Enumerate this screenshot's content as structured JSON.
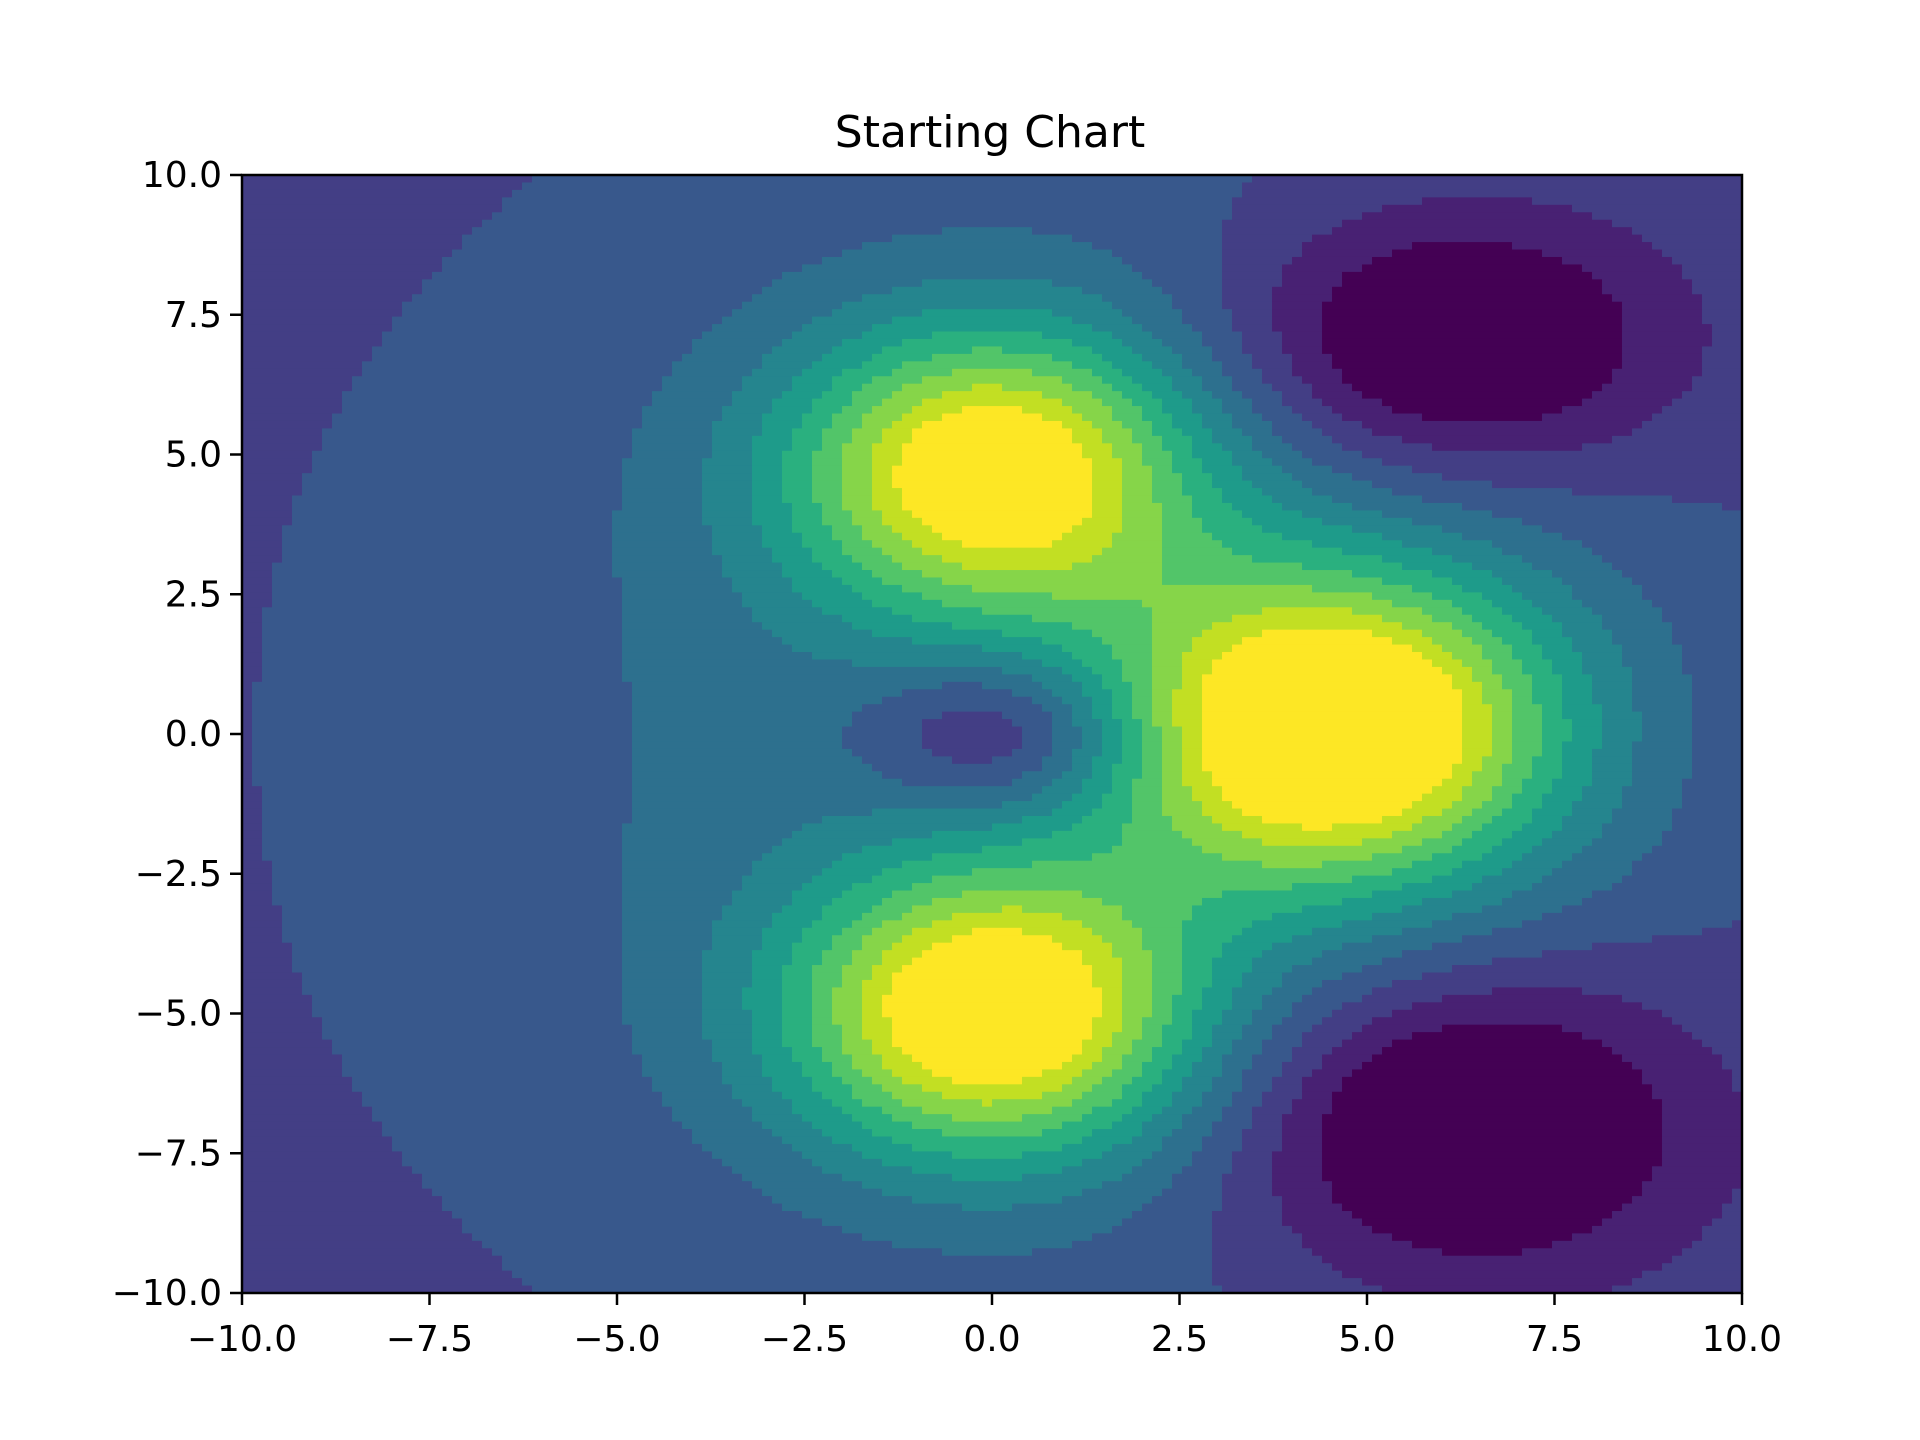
{
  "chart_data": {
    "type": "contour",
    "title": "Starting Chart",
    "xlabel": "",
    "ylabel": "",
    "xlim": [
      -10.0,
      10.0
    ],
    "ylim": [
      -10.0,
      10.0
    ],
    "x_ticks": [
      "−10.0",
      "−7.5",
      "−5.0",
      "−2.5",
      "0.0",
      "2.5",
      "5.0",
      "7.5",
      "10.0"
    ],
    "x_tick_values": [
      -10.0,
      -7.5,
      -5.0,
      -2.5,
      0.0,
      2.5,
      5.0,
      7.5,
      10.0
    ],
    "y_ticks": [
      "10.0",
      "7.5",
      "5.0",
      "2.5",
      "0.0",
      "−2.5",
      "−5.0",
      "−7.5",
      "−10.0"
    ],
    "y_tick_values": [
      10.0,
      7.5,
      5.0,
      2.5,
      0.0,
      -2.5,
      -5.0,
      -7.5,
      -10.0
    ],
    "colormap": "viridis",
    "grid": false,
    "legend": "none",
    "levels": [
      -0.3,
      -0.2,
      -0.1,
      0.0,
      0.1,
      0.2,
      0.3,
      0.4,
      0.5,
      0.6,
      0.7,
      0.8,
      0.9,
      1.0
    ],
    "level_colors": [
      "#440154",
      "#482173",
      "#433e85",
      "#38588c",
      "#2d708e",
      "#25858e",
      "#1e9b8a",
      "#2ab07f",
      "#52c569",
      "#86d549",
      "#c2df23",
      "#fde725"
    ],
    "features": [
      {
        "kind": "peak",
        "x": 4.6,
        "y": 0.1,
        "value": 1.0
      },
      {
        "kind": "peak",
        "x": 0.0,
        "y": -5.0,
        "value": 0.9
      },
      {
        "kind": "peak",
        "x": 0.0,
        "y": 4.7,
        "value": 0.85
      },
      {
        "kind": "trough",
        "x": 6.1,
        "y": 7.0,
        "value": -0.3
      },
      {
        "kind": "trough",
        "x": 6.3,
        "y": -7.0,
        "value": -0.3
      },
      {
        "kind": "dip",
        "x": 0.2,
        "y": 0.0,
        "value": 0.0
      }
    ]
  }
}
